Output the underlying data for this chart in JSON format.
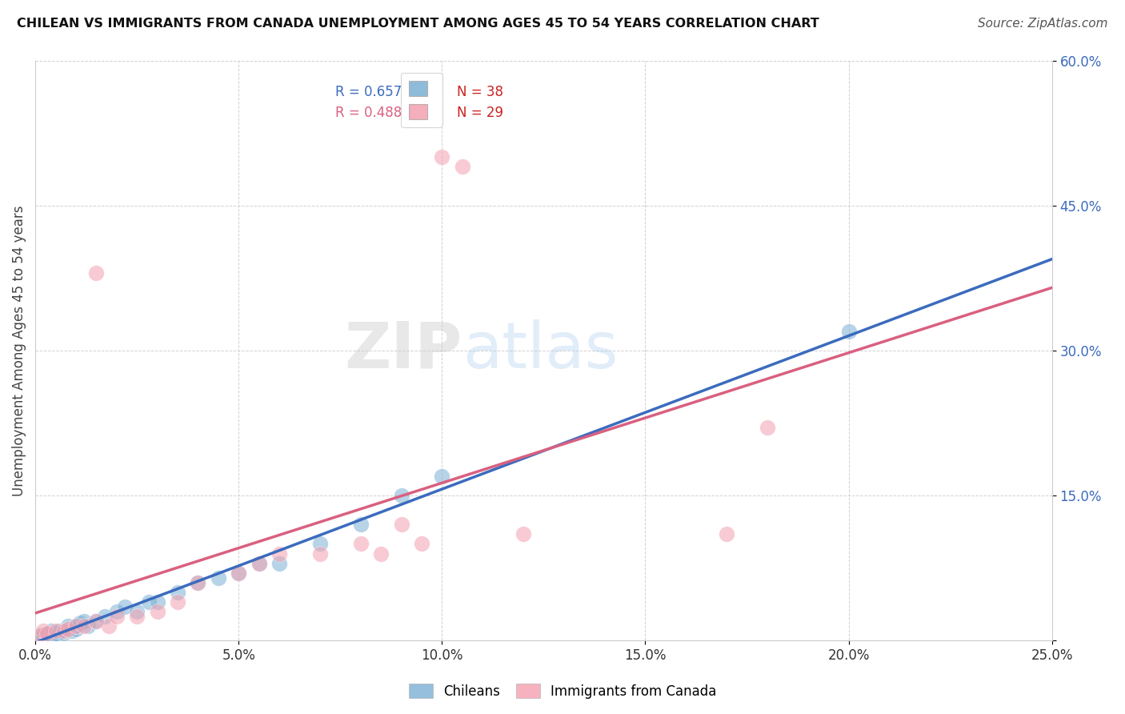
{
  "title": "CHILEAN VS IMMIGRANTS FROM CANADA UNEMPLOYMENT AMONG AGES 45 TO 54 YEARS CORRELATION CHART",
  "source": "Source: ZipAtlas.com",
  "ylabel": "Unemployment Among Ages 45 to 54 years",
  "xlim": [
    0.0,
    0.25
  ],
  "ylim": [
    0.0,
    0.6
  ],
  "xticks": [
    0.0,
    0.05,
    0.1,
    0.15,
    0.2,
    0.25
  ],
  "yticks": [
    0.0,
    0.15,
    0.3,
    0.45,
    0.6
  ],
  "xtick_labels": [
    "0.0%",
    "5.0%",
    "10.0%",
    "15.0%",
    "20.0%",
    "25.0%"
  ],
  "ytick_labels": [
    "",
    "15.0%",
    "30.0%",
    "45.0%",
    "60.0%"
  ],
  "blue_R": 0.657,
  "blue_N": 38,
  "pink_R": 0.488,
  "pink_N": 29,
  "blue_color": "#7BAFD4",
  "pink_color": "#F4A0B0",
  "blue_line_color": "#3B6BBE",
  "pink_line_color": "#D96080",
  "blue_scatter_x": [
    0.001,
    0.001,
    0.002,
    0.002,
    0.003,
    0.003,
    0.004,
    0.004,
    0.005,
    0.005,
    0.006,
    0.007,
    0.008,
    0.008,
    0.009,
    0.01,
    0.01,
    0.011,
    0.012,
    0.013,
    0.015,
    0.017,
    0.02,
    0.022,
    0.025,
    0.028,
    0.03,
    0.035,
    0.04,
    0.045,
    0.05,
    0.055,
    0.06,
    0.07,
    0.08,
    0.09,
    0.1,
    0.2
  ],
  "blue_scatter_y": [
    0.005,
    0.003,
    0.004,
    0.006,
    0.005,
    0.007,
    0.005,
    0.01,
    0.005,
    0.008,
    0.01,
    0.008,
    0.012,
    0.015,
    0.01,
    0.012,
    0.015,
    0.018,
    0.02,
    0.015,
    0.02,
    0.025,
    0.03,
    0.035,
    0.03,
    0.04,
    0.04,
    0.05,
    0.06,
    0.065,
    0.07,
    0.08,
    0.08,
    0.1,
    0.12,
    0.15,
    0.17,
    0.32
  ],
  "pink_scatter_x": [
    0.001,
    0.002,
    0.003,
    0.005,
    0.007,
    0.008,
    0.01,
    0.012,
    0.015,
    0.018,
    0.015,
    0.02,
    0.025,
    0.03,
    0.035,
    0.04,
    0.05,
    0.055,
    0.06,
    0.07,
    0.08,
    0.085,
    0.09,
    0.095,
    0.1,
    0.105,
    0.12,
    0.17,
    0.18
  ],
  "pink_scatter_y": [
    0.005,
    0.01,
    0.008,
    0.01,
    0.01,
    0.012,
    0.015,
    0.015,
    0.38,
    0.015,
    0.02,
    0.025,
    0.025,
    0.03,
    0.04,
    0.06,
    0.07,
    0.08,
    0.09,
    0.09,
    0.1,
    0.09,
    0.12,
    0.1,
    0.5,
    0.49,
    0.11,
    0.11,
    0.22
  ]
}
